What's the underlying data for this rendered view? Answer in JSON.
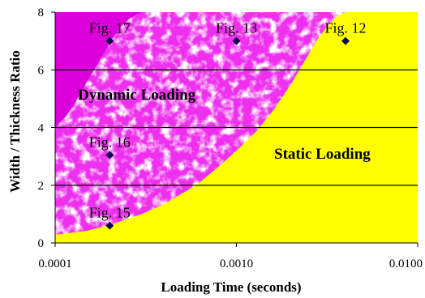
{
  "chart_data": {
    "type": "scatter",
    "title": "",
    "xlabel": "Loading Time (seconds)",
    "ylabel": "Width / Thickness Ratio",
    "x_scale": "log",
    "xlim": [
      0.0001,
      0.01
    ],
    "ylim": [
      0,
      8
    ],
    "x_ticks": [
      "0.0001",
      "0.0010",
      "0.0100"
    ],
    "y_ticks": [
      "0",
      "2",
      "4",
      "6",
      "8"
    ],
    "gridlines": "horizontal",
    "points": [
      {
        "label": "Fig. 17",
        "x": 0.0002,
        "y": 7.0
      },
      {
        "label": "Fig. 13",
        "x": 0.001,
        "y": 7.0
      },
      {
        "label": "Fig. 12",
        "x": 0.004,
        "y": 7.0
      },
      {
        "label": "Fig. 16",
        "x": 0.0002,
        "y": 3.05
      },
      {
        "label": "Fig. 15",
        "x": 0.0002,
        "y": 0.6
      }
    ],
    "regions": [
      {
        "label": "Dynamic Loading",
        "color": "#ee30ee"
      },
      {
        "label": "Static Loading",
        "color": "#ffff00"
      }
    ],
    "boundary_curves": [
      {
        "name": "dynamic-static boundary",
        "x": [
          0.0001,
          0.00015,
          0.0002,
          0.0003,
          0.0004,
          0.0006,
          0.0008,
          0.001,
          0.0013,
          0.0016,
          0.002,
          0.0024,
          0.0028,
          0.0032,
          0.0036,
          0.004
        ],
        "y": [
          0.28,
          0.42,
          0.62,
          1.0,
          1.35,
          2.0,
          2.65,
          3.2,
          3.9,
          4.6,
          5.5,
          6.35,
          7.05,
          7.55,
          7.85,
          8.0
        ]
      },
      {
        "name": "high-rate zone boundary",
        "x": [
          0.0001,
          0.000115,
          0.00013,
          0.00015,
          0.000175,
          0.0002,
          0.00023,
          0.00026,
          0.0003
        ],
        "y": [
          4.0,
          4.4,
          4.9,
          5.6,
          6.3,
          6.95,
          7.5,
          7.8,
          8.0
        ]
      }
    ],
    "colors": {
      "dynamic_region": "#ee30ee",
      "dynamic_texture": "#ffffff",
      "high_rate_region": "#dd00dd",
      "static_region": "#ffff00",
      "gridline": "#000000",
      "marker": "#0a0a50"
    }
  }
}
